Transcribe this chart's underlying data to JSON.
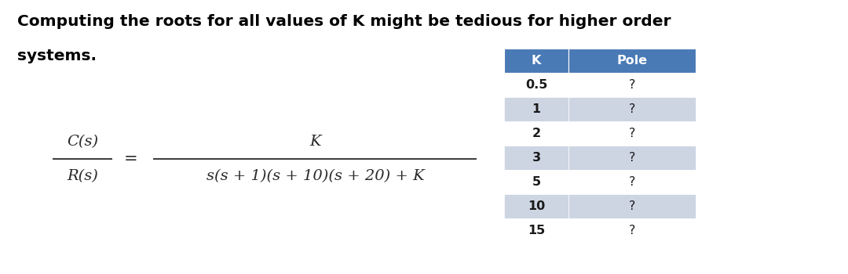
{
  "title_line1": "Computing the roots for all values of K might be tedious for higher order",
  "title_line2": "systems.",
  "title_fontsize": 14.5,
  "title_fontweight": "bold",
  "formula_lhs_num": "C(s)",
  "formula_lhs_den": "R(s)",
  "formula_numerator": "K",
  "formula_denominator": "s(s + 1)(s + 10)(s + 20) + K",
  "table_headers": [
    "K",
    "Pole"
  ],
  "table_rows": [
    [
      "0.5",
      "?"
    ],
    [
      "1",
      "?"
    ],
    [
      "2",
      "?"
    ],
    [
      "3",
      "?"
    ],
    [
      "5",
      "?"
    ],
    [
      "10",
      "?"
    ],
    [
      "15",
      "?"
    ]
  ],
  "header_bg_color": "#4a7ab5",
  "header_text_color": "#ffffff",
  "row_alt_color1": "#ffffff",
  "row_alt_color2": "#cdd5e3",
  "table_text_color": "#1a1a1a",
  "background_color": "#ffffff",
  "formula_color": "#2a2a2a",
  "fig_width": 10.8,
  "fig_height": 3.5,
  "dpi": 100
}
